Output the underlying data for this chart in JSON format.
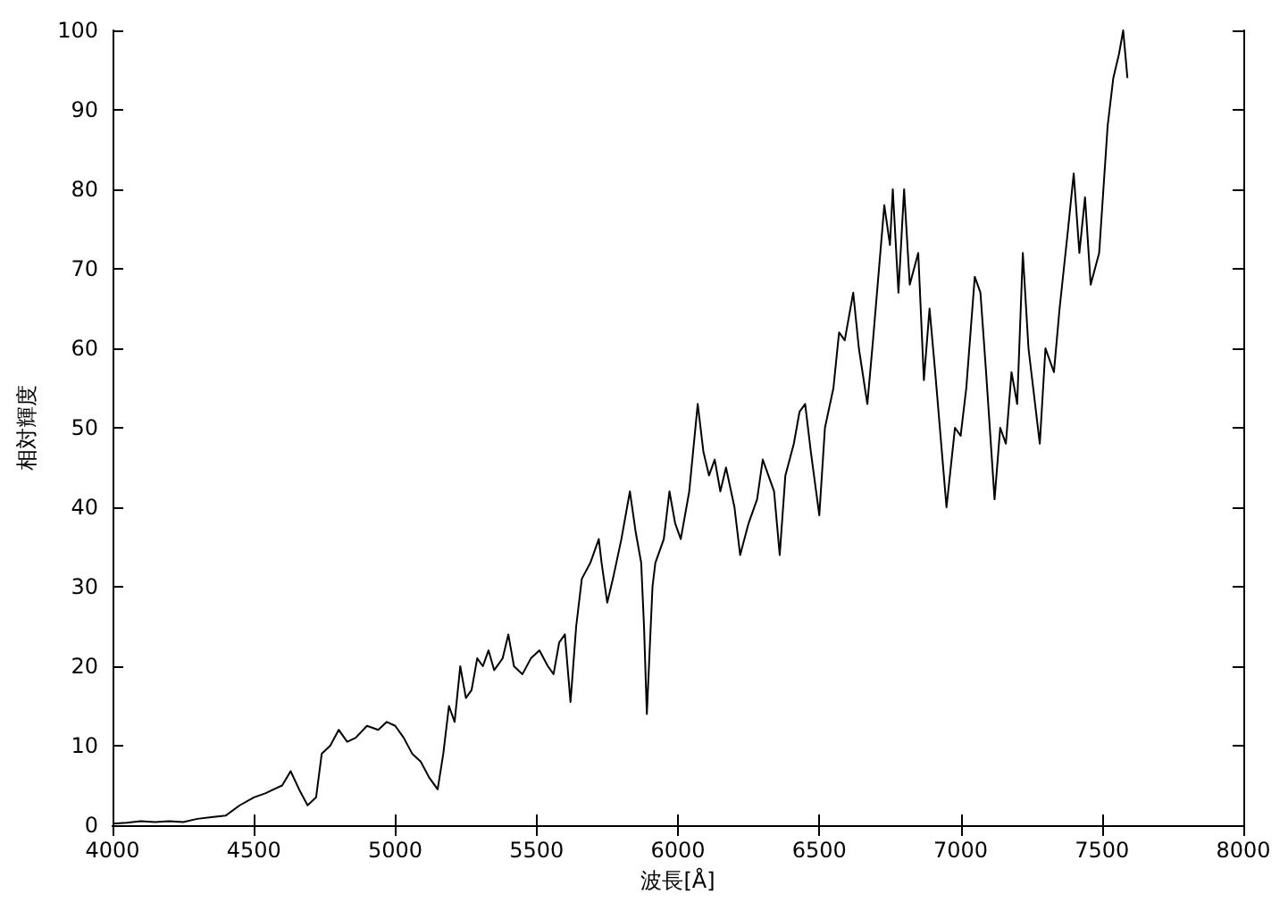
{
  "chart_data": {
    "type": "line",
    "xlabel": "波長[Å]",
    "ylabel": "相対輝度",
    "xlim": [
      4000,
      8000
    ],
    "xticks": [
      4000,
      4500,
      5000,
      5500,
      6000,
      6500,
      7000,
      7500,
      8000
    ],
    "ylim": [
      0,
      100
    ],
    "yticks": [
      0,
      10,
      20,
      30,
      40,
      50,
      60,
      70,
      80,
      90,
      100
    ],
    "marker": "none",
    "line_style": "solid",
    "series": [
      {
        "color": "#000000",
        "x": [
          4000,
          4050,
          4100,
          4150,
          4200,
          4250,
          4300,
          4350,
          4400,
          4450,
          4500,
          4540,
          4570,
          4600,
          4630,
          4660,
          4690,
          4720,
          4740,
          4770,
          4800,
          4830,
          4860,
          4900,
          4940,
          4970,
          5000,
          5030,
          5060,
          5090,
          5120,
          5150,
          5170,
          5190,
          5210,
          5230,
          5250,
          5270,
          5290,
          5310,
          5330,
          5350,
          5380,
          5400,
          5420,
          5450,
          5480,
          5510,
          5540,
          5560,
          5580,
          5600,
          5620,
          5640,
          5660,
          5690,
          5720,
          5730,
          5750,
          5770,
          5800,
          5830,
          5850,
          5870,
          5880,
          5890,
          5910,
          5920,
          5950,
          5970,
          5990,
          6010,
          6040,
          6070,
          6090,
          6110,
          6130,
          6150,
          6170,
          6200,
          6220,
          6250,
          6280,
          6300,
          6320,
          6340,
          6360,
          6380,
          6410,
          6430,
          6450,
          6470,
          6500,
          6520,
          6550,
          6570,
          6590,
          6620,
          6640,
          6670,
          6690,
          6730,
          6750,
          6760,
          6780,
          6800,
          6820,
          6850,
          6870,
          6890,
          6910,
          6950,
          6980,
          7000,
          7020,
          7050,
          7070,
          7090,
          7120,
          7140,
          7160,
          7180,
          7200,
          7220,
          7240,
          7280,
          7300,
          7330,
          7350,
          7380,
          7400,
          7420,
          7440,
          7460,
          7490,
          7520,
          7540,
          7560,
          7575,
          7590
        ],
        "values": [
          0.2,
          0.3,
          0.5,
          0.4,
          0.5,
          0.4,
          0.8,
          1,
          1.2,
          2.5,
          3.5,
          4,
          4.5,
          5,
          6.8,
          4.5,
          2.5,
          3.5,
          9,
          10,
          12,
          10.5,
          11,
          12.5,
          12,
          13,
          12.5,
          11,
          9,
          8,
          6,
          4.5,
          9,
          15,
          13,
          20,
          16,
          17,
          21,
          20,
          22,
          19.5,
          21,
          24,
          20,
          19,
          21,
          22,
          20,
          19,
          23,
          24,
          15.5,
          25,
          31,
          33,
          36,
          33,
          28,
          31,
          36,
          42,
          37,
          33,
          25,
          14,
          30,
          33,
          36,
          42,
          38,
          36,
          42,
          53,
          47,
          44,
          46,
          42,
          45,
          40,
          34,
          38,
          41,
          46,
          44,
          42,
          34,
          44,
          48,
          52,
          53,
          47,
          39,
          50,
          55,
          62,
          61,
          67,
          60,
          53,
          61,
          78,
          73,
          80,
          67,
          80,
          68,
          72,
          56,
          65,
          57,
          40,
          50,
          49,
          55,
          69,
          67,
          57,
          41,
          50,
          48,
          57,
          53,
          72,
          60,
          48,
          60,
          57,
          65,
          75,
          82,
          72,
          79,
          68,
          72,
          88,
          94,
          97,
          100,
          94
        ]
      }
    ]
  }
}
